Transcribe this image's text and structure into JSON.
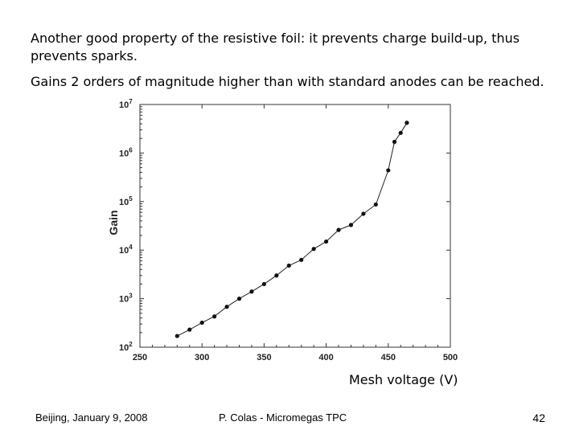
{
  "slide": {
    "paragraph1": "Another good property of the resistive foil: it prevents charge build-up, thus prevents sparks.",
    "paragraph2": "Gains 2 orders of magnitude higher than with standard anodes can be reached.",
    "xlabel_text": "Mesh voltage (V)",
    "footer_left": "Beijing, January 9, 2008",
    "footer_center": "P. Colas - Micromegas TPC",
    "footer_right": "42"
  },
  "chart_data": {
    "type": "line",
    "xlabel": "Mesh voltage (V)",
    "ylabel": "Gain",
    "xlim": [
      250,
      500
    ],
    "ylim": [
      100,
      10000000
    ],
    "yscale": "log",
    "x_ticks": [
      "250",
      "300",
      "350",
      "400",
      "450",
      "500"
    ],
    "y_ticks": [
      {
        "base": "10",
        "exp": "2"
      },
      {
        "base": "10",
        "exp": "3"
      },
      {
        "base": "10",
        "exp": "4"
      },
      {
        "base": "10",
        "exp": "5"
      },
      {
        "base": "10",
        "exp": "6"
      },
      {
        "base": "10",
        "exp": "7"
      }
    ],
    "grid": false,
    "series": [
      {
        "x": [
          280,
          290,
          300,
          310,
          320,
          330,
          340,
          350,
          360,
          370,
          380,
          390,
          400,
          410,
          420,
          430,
          440,
          450,
          455,
          460,
          465
        ],
        "y": [
          170,
          230,
          320,
          430,
          680,
          1000,
          1400,
          2000,
          3000,
          4800,
          6300,
          10600,
          15000,
          26000,
          33000,
          56000,
          87000,
          440000,
          1700000,
          2600000,
          4200000
        ]
      }
    ]
  }
}
